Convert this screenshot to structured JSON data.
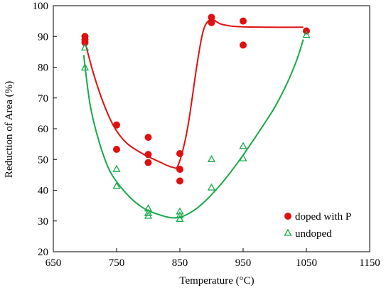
{
  "chart_data": {
    "type": "scatter",
    "title": "",
    "xlabel": "Temperature (°C)",
    "ylabel": "Reduction of Area (%)",
    "xlim": [
      650,
      1150
    ],
    "ylim": [
      20,
      100
    ],
    "xticks": [
      "650",
      "750",
      "850",
      "950",
      "1050",
      "1150"
    ],
    "yticks": [
      "20",
      "30",
      "40",
      "50",
      "60",
      "70",
      "80",
      "90",
      "100"
    ],
    "grid": false,
    "legend_position": "bottom-right",
    "series": [
      {
        "name": "doped with P",
        "marker": "filled-circle",
        "color": "#e01010",
        "points": [
          [
            700,
            90
          ],
          [
            700,
            89
          ],
          [
            700,
            88
          ],
          [
            750,
            61.2
          ],
          [
            750,
            53.3
          ],
          [
            800,
            57.2
          ],
          [
            800,
            51.6
          ],
          [
            800,
            49
          ],
          [
            850,
            51.9
          ],
          [
            850,
            46.8
          ],
          [
            850,
            43
          ],
          [
            900,
            96.2
          ],
          [
            900,
            94.5
          ],
          [
            950,
            95
          ],
          [
            950,
            87.2
          ],
          [
            1050,
            91.8
          ]
        ],
        "trend": [
          [
            698,
            90
          ],
          [
            712,
            79
          ],
          [
            728,
            69
          ],
          [
            745,
            61
          ],
          [
            765,
            55.5
          ],
          [
            790,
            52
          ],
          [
            815,
            49.5
          ],
          [
            838,
            47.5
          ],
          [
            848,
            48.5
          ],
          [
            862,
            60
          ],
          [
            878,
            82
          ],
          [
            888,
            92.5
          ],
          [
            900,
            95.5
          ],
          [
            915,
            94
          ],
          [
            940,
            93.2
          ],
          [
            990,
            93
          ],
          [
            1045,
            93
          ]
        ]
      },
      {
        "name": "undoped",
        "marker": "open-triangle",
        "color": "#1aa84a",
        "points": [
          [
            700,
            86.5
          ],
          [
            700,
            80
          ],
          [
            750,
            47
          ],
          [
            750,
            41.5
          ],
          [
            800,
            34.2
          ],
          [
            800,
            32.7
          ],
          [
            800,
            31.8
          ],
          [
            850,
            33.2
          ],
          [
            850,
            31.9
          ],
          [
            850,
            30.8
          ],
          [
            900,
            50.2
          ],
          [
            900,
            41
          ],
          [
            950,
            54.5
          ],
          [
            950,
            50.5
          ],
          [
            1050,
            90.6
          ]
        ],
        "trend": [
          [
            698,
            84
          ],
          [
            708,
            68
          ],
          [
            722,
            56
          ],
          [
            740,
            46
          ],
          [
            765,
            39
          ],
          [
            790,
            34.5
          ],
          [
            815,
            32.2
          ],
          [
            840,
            31
          ],
          [
            860,
            32
          ],
          [
            885,
            35.5
          ],
          [
            915,
            42
          ],
          [
            945,
            50
          ],
          [
            975,
            59
          ],
          [
            1000,
            67
          ],
          [
            1020,
            75
          ],
          [
            1035,
            82.5
          ],
          [
            1045,
            89
          ]
        ]
      }
    ]
  }
}
